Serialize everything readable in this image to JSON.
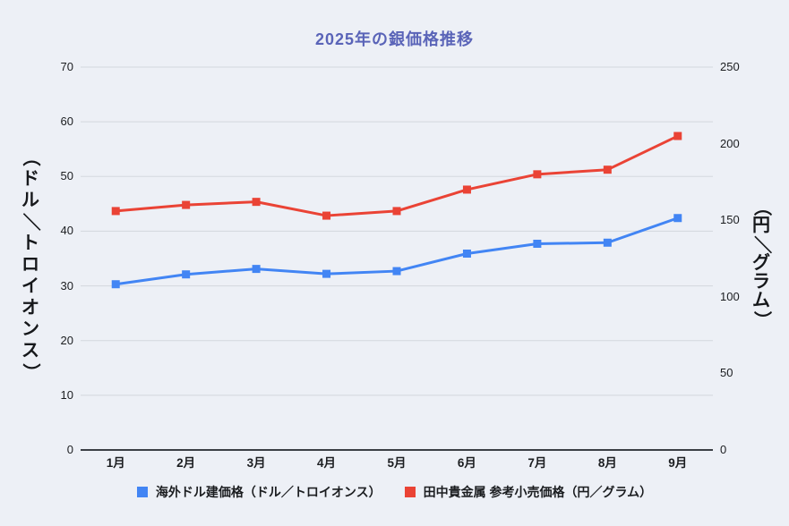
{
  "title": "2025年の銀価格推移",
  "axes": {
    "left": {
      "title": "（ドル／トロイオンス）",
      "ticks": [
        0,
        10,
        20,
        30,
        40,
        50,
        60,
        70
      ],
      "max": 70
    },
    "right": {
      "title": "（円／グラム）",
      "ticks": [
        0,
        50,
        100,
        150,
        200,
        250
      ],
      "max": 250
    }
  },
  "legend": {
    "items": [
      {
        "label": "海外ドル建価格（ドル／トロイオンス）",
        "color": "#4285f4"
      },
      {
        "label": "田中貴金属 参考小売価格（円／グラム）",
        "color": "#ea4335"
      }
    ]
  },
  "chart_data": {
    "type": "line",
    "title": "2025年の銀価格推移",
    "categories": [
      "1月",
      "2月",
      "3月",
      "4月",
      "5月",
      "6月",
      "7月",
      "8月",
      "9月"
    ],
    "series": [
      {
        "name": "海外ドル建価格（ドル／トロイオンス）",
        "axis": "left",
        "color": "#4285f4",
        "marker": "square",
        "values": [
          30.3,
          32.1,
          33.1,
          32.2,
          32.7,
          35.9,
          37.7,
          37.9,
          42.4
        ]
      },
      {
        "name": "田中貴金属 参考小売価格（円／グラム）",
        "axis": "right",
        "color": "#ea4335",
        "marker": "square",
        "values": [
          156,
          160,
          162,
          153,
          156,
          170,
          180,
          183,
          205
        ]
      }
    ],
    "xlabel": "",
    "ylabel_left": "（ドル／トロイオンス）",
    "ylabel_right": "（円／グラム）",
    "ylim_left": [
      0,
      70
    ],
    "ylim_right": [
      0,
      250
    ],
    "grid": true,
    "legend_position": "bottom"
  },
  "colors": {
    "background": "#edf0f6",
    "title": "#5a64b8",
    "gridline": "#d3d7dd",
    "axis_line": "#3b3f45",
    "text": "#1b1d20"
  }
}
